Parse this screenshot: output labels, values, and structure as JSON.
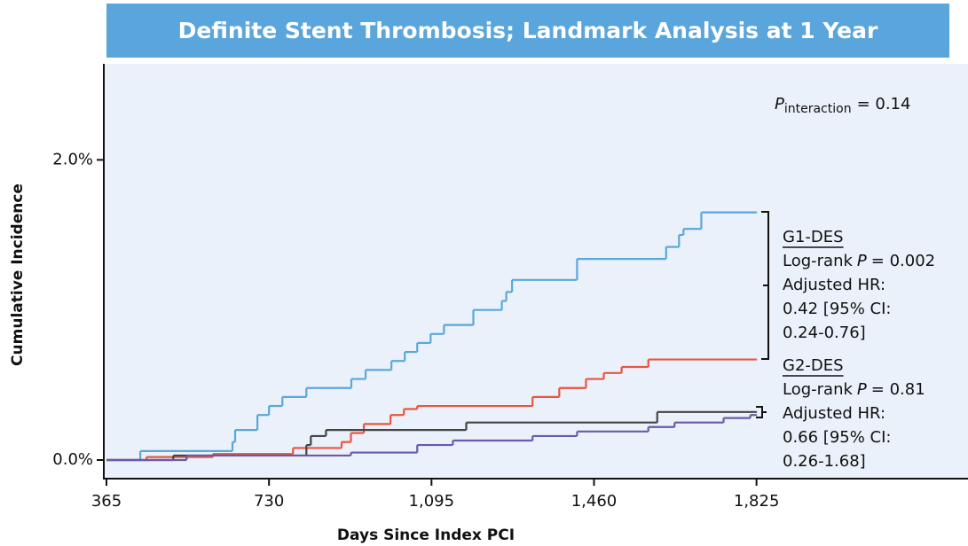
{
  "chart_data": {
    "type": "step",
    "title": "Definite Stent Thrombosis; Landmark Analysis at 1 Year",
    "x_label": "Days Since Index PCI",
    "y_label": "Cumulative Incidence",
    "xlim": [
      359,
      2300
    ],
    "ylim": [
      -0.124,
      2.64
    ],
    "xticks": [
      365,
      730,
      {
        "value": 1095,
        "label": "1,095"
      },
      {
        "value": 1460,
        "label": "1,460"
      },
      {
        "value": 1825,
        "label": "1,825"
      }
    ],
    "yticks": [
      {
        "value": 0,
        "label": "0.0%"
      },
      {
        "value": 2,
        "label": "2.0%"
      }
    ],
    "series": [
      {
        "color": "#5aa8d8",
        "x": [
          365,
          441,
          648,
          654,
          704,
          730,
          760,
          814,
          915,
          947,
          1005,
          1035,
          1063,
          1093,
          1123,
          1189,
          1253,
          1263,
          1276,
          1422,
          1622,
          1651,
          1661,
          1701,
          1825
        ],
        "values": [
          0,
          0.06,
          0.12,
          0.2,
          0.3,
          0.36,
          0.42,
          0.48,
          0.54,
          0.6,
          0.66,
          0.72,
          0.78,
          0.84,
          0.9,
          1.0,
          1.06,
          1.12,
          1.2,
          1.34,
          1.42,
          1.5,
          1.54,
          1.65,
          1.65
        ]
      },
      {
        "color": "#e8553f",
        "x": [
          365,
          455,
          604,
          784,
          893,
          914,
          943,
          1003,
          1033,
          1063,
          1322,
          1382,
          1442,
          1482,
          1522,
          1582,
          1825
        ],
        "values": [
          0,
          0.02,
          0.04,
          0.08,
          0.12,
          0.18,
          0.24,
          0.3,
          0.34,
          0.36,
          0.42,
          0.48,
          0.54,
          0.58,
          0.62,
          0.67,
          0.67
        ]
      },
      {
        "color": "#444444",
        "x": [
          365,
          515,
          814,
          824,
          858,
          1173,
          1602,
          1825
        ],
        "values": [
          0,
          0.03,
          0.1,
          0.16,
          0.2,
          0.25,
          0.32,
          0.32
        ]
      },
      {
        "color": "#6a5aa8",
        "x": [
          365,
          545,
          914,
          1063,
          1143,
          1322,
          1422,
          1582,
          1641,
          1751,
          1811,
          1825
        ],
        "values": [
          0,
          0.03,
          0.05,
          0.1,
          0.13,
          0.16,
          0.19,
          0.22,
          0.25,
          0.28,
          0.3,
          0.3
        ]
      }
    ],
    "p_interaction": {
      "symbol": "P",
      "subscript": "interaction",
      "text": "= 0.14"
    },
    "groups": [
      {
        "name": "G1-DES",
        "log_rank": "Log-rank",
        "p": "P",
        "p_text": "= 0.002",
        "lines": [
          "Adjusted HR:",
          "0.42 [95% CI:",
          "0.24-0.76]"
        ]
      },
      {
        "name": "G2-DES",
        "log_rank": "Log-rank",
        "p": "P",
        "p_text": "= 0.81",
        "lines": [
          "Adjusted HR:",
          "0.66 [95% CI:",
          "0.26-1.68]"
        ]
      }
    ]
  }
}
